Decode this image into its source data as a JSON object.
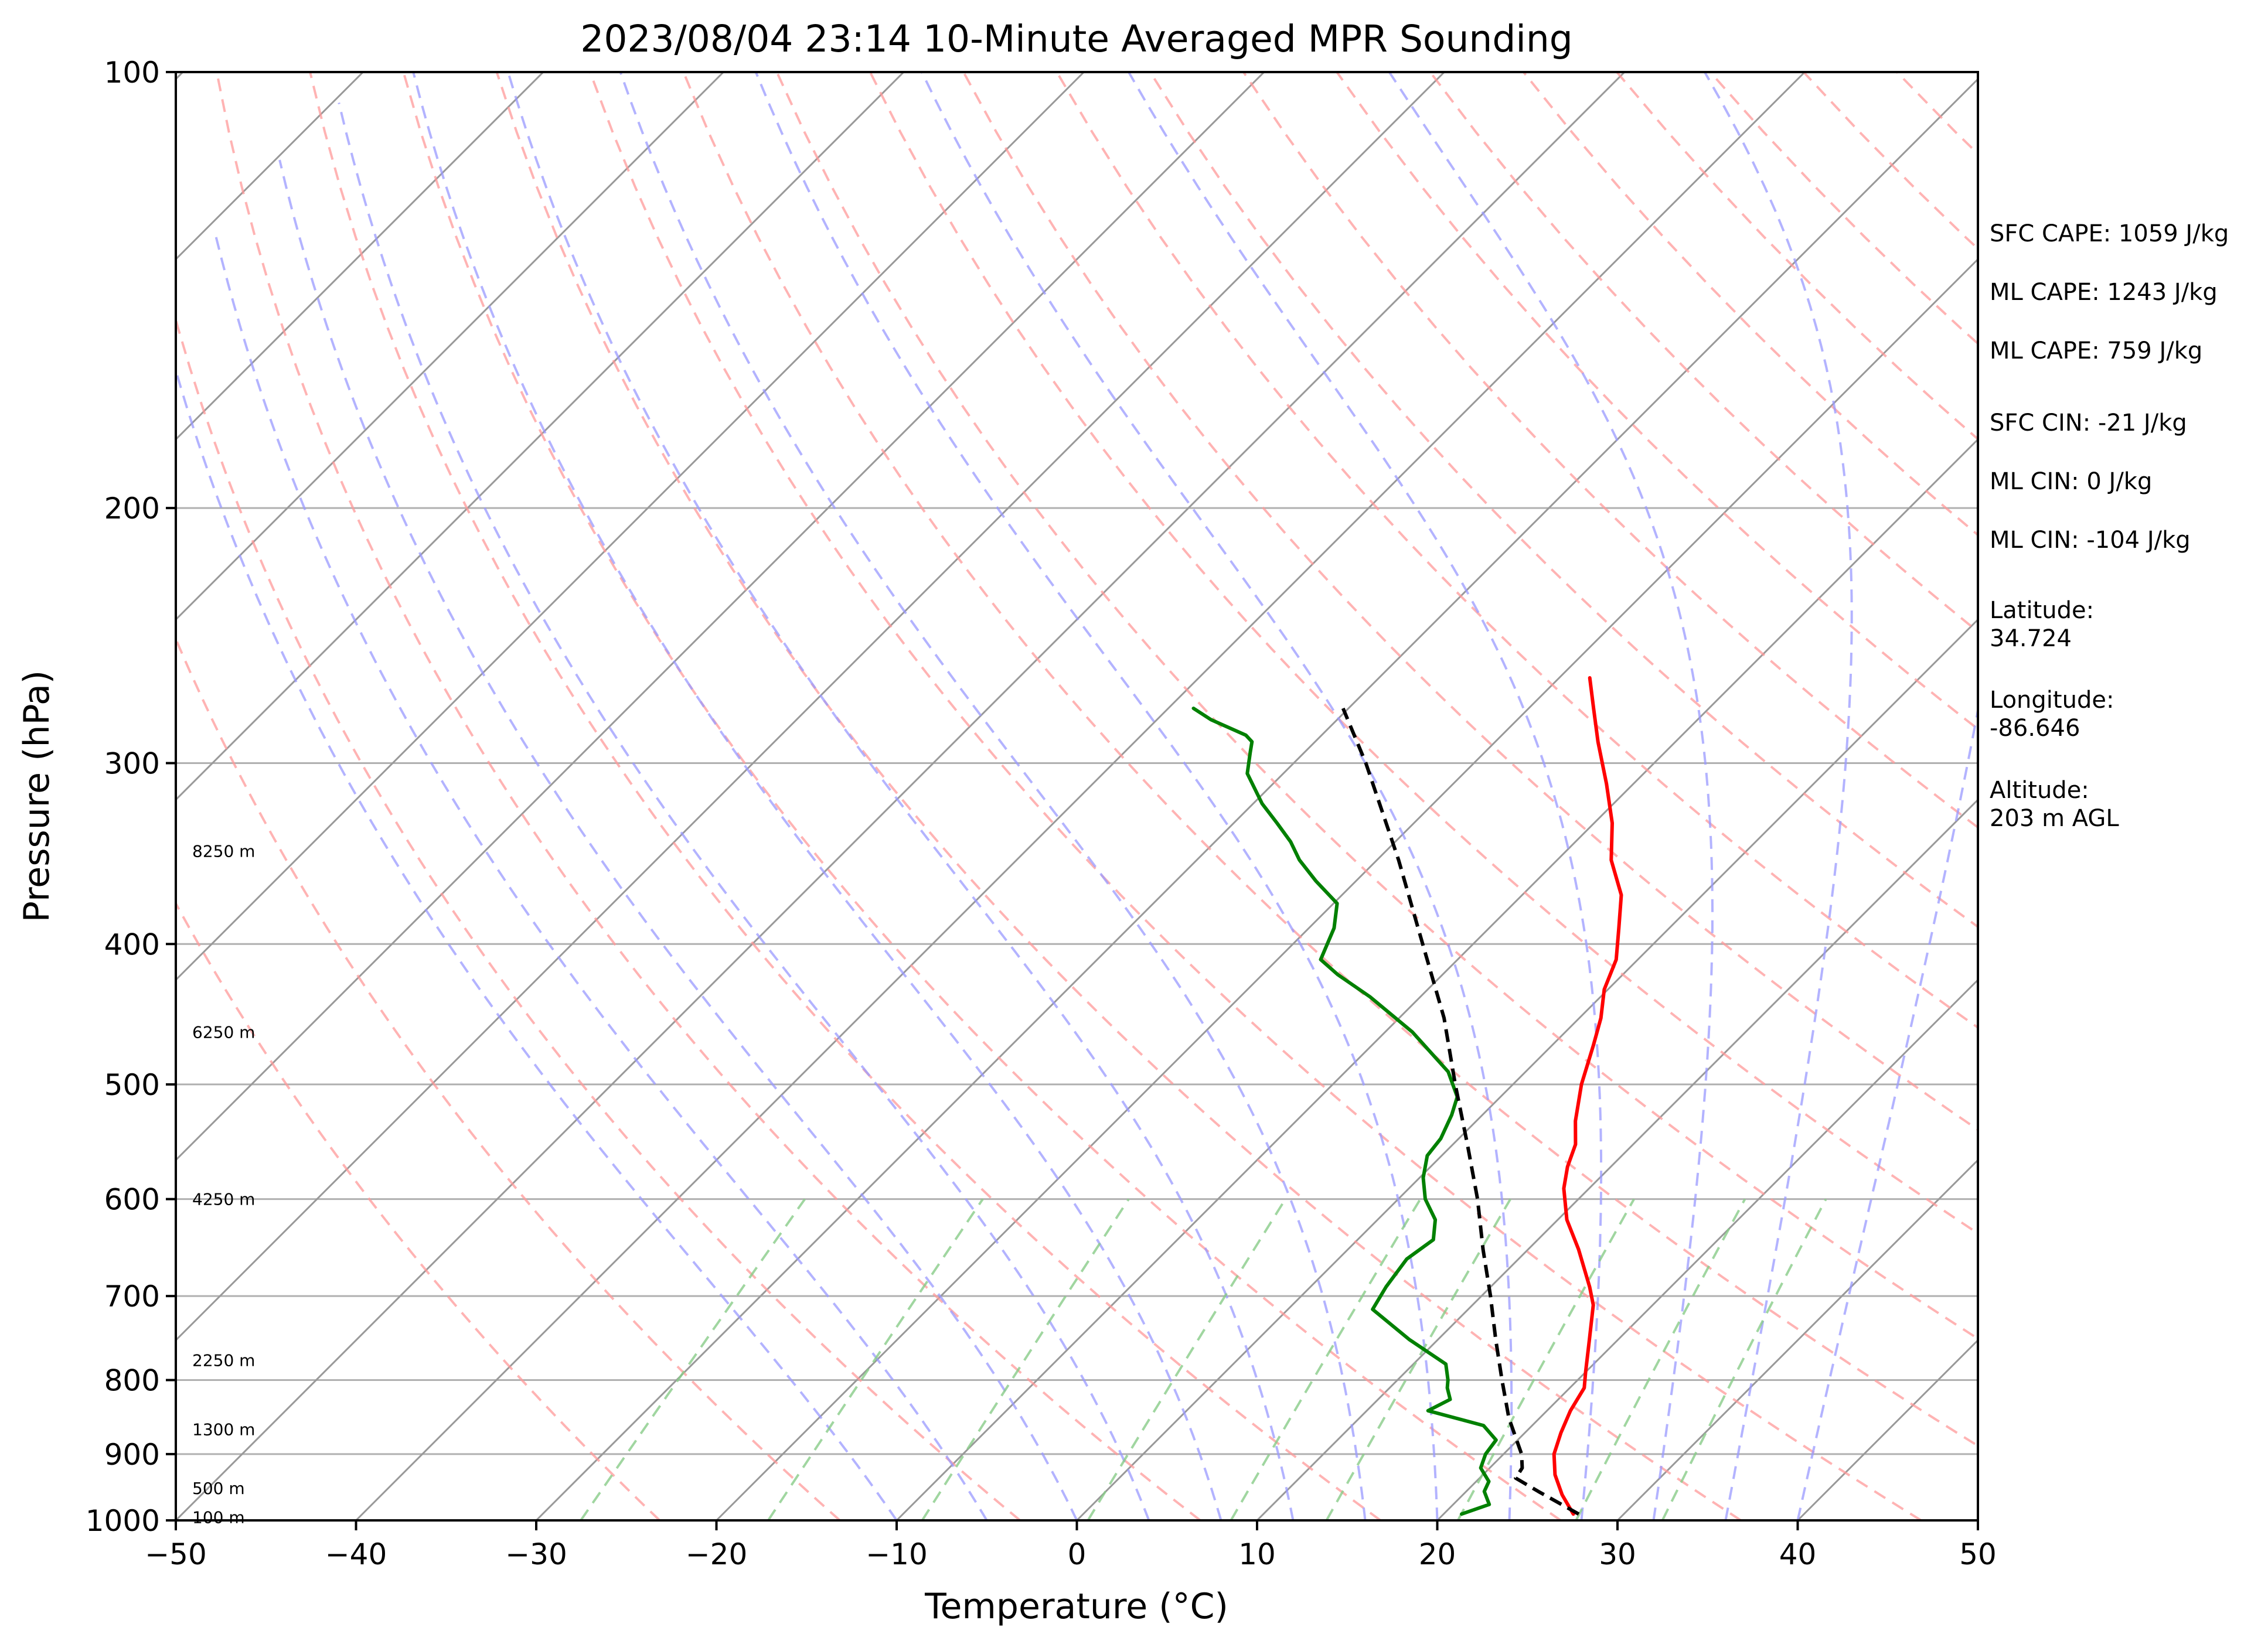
{
  "chart_data": {
    "type": "line",
    "title": "2023/08/04 23:14 10-Minute Averaged MPR Sounding",
    "xlabel": "Temperature (°C)",
    "ylabel": "Pressure (hPa)",
    "xlim": [
      -50,
      50
    ],
    "ylim": [
      1000,
      100
    ],
    "y_scale": "log",
    "skew_t": true,
    "grid": true,
    "x_ticks": [
      "−50",
      "−40",
      "−30",
      "−20",
      "−10",
      "0",
      "10",
      "20",
      "30",
      "40",
      "50"
    ],
    "y_ticks": [
      "100",
      "200",
      "300",
      "400",
      "500",
      "600",
      "700",
      "800",
      "900",
      "1000"
    ],
    "height_labels": [
      {
        "pressure": 995,
        "text": "100 m"
      },
      {
        "pressure": 950,
        "text": "500 m"
      },
      {
        "pressure": 865,
        "text": "1300 m"
      },
      {
        "pressure": 775,
        "text": "2250 m"
      },
      {
        "pressure": 600,
        "text": "4250 m"
      },
      {
        "pressure": 460,
        "text": "6250 m"
      },
      {
        "pressure": 345,
        "text": "8250 m"
      }
    ],
    "series": [
      {
        "role": "temperature",
        "color": "#ff0000",
        "points": [
          [
            27.2,
            990
          ],
          [
            25.5,
            960
          ],
          [
            24.0,
            930
          ],
          [
            22.8,
            900
          ],
          [
            22.0,
            870
          ],
          [
            21.3,
            840
          ],
          [
            20.8,
            810
          ],
          [
            20.0,
            790
          ],
          [
            18.4,
            750
          ],
          [
            16.7,
            710
          ],
          [
            15.5,
            690
          ],
          [
            12.8,
            650
          ],
          [
            10.5,
            620
          ],
          [
            8.6,
            590
          ],
          [
            7.6,
            570
          ],
          [
            6.8,
            550
          ],
          [
            5.5,
            530
          ],
          [
            3.8,
            500
          ],
          [
            2.3,
            470
          ],
          [
            1.2,
            450
          ],
          [
            -0.2,
            430
          ],
          [
            -1.2,
            410
          ],
          [
            -2.8,
            390
          ],
          [
            -4.5,
            370
          ],
          [
            -7.0,
            350
          ],
          [
            -9.0,
            330
          ],
          [
            -11.5,
            310
          ],
          [
            -14.3,
            290
          ],
          [
            -16.4,
            275
          ],
          [
            -18.3,
            262
          ]
        ]
      },
      {
        "role": "dewpoint",
        "color": "#008000",
        "points": [
          [
            21.0,
            990
          ],
          [
            22.0,
            975
          ],
          [
            21.0,
            955
          ],
          [
            20.7,
            940
          ],
          [
            19.5,
            920
          ],
          [
            19.0,
            900
          ],
          [
            18.8,
            880
          ],
          [
            17.3,
            860
          ],
          [
            13.4,
            840
          ],
          [
            14.0,
            825
          ],
          [
            13.2,
            810
          ],
          [
            12.8,
            800
          ],
          [
            11.8,
            780
          ],
          [
            8.4,
            750
          ],
          [
            4.7,
            715
          ],
          [
            4.2,
            690
          ],
          [
            3.8,
            660
          ],
          [
            4.2,
            640
          ],
          [
            3.2,
            620
          ],
          [
            1.5,
            600
          ],
          [
            0.2,
            580
          ],
          [
            -0.8,
            560
          ],
          [
            -1.0,
            545
          ],
          [
            -1.7,
            525
          ],
          [
            -2.4,
            510
          ],
          [
            -4.3,
            490
          ],
          [
            -8.5,
            460
          ],
          [
            -12.8,
            435
          ],
          [
            -15.8,
            420
          ],
          [
            -17.6,
            410
          ],
          [
            -18.6,
            390
          ],
          [
            -19.8,
            375
          ],
          [
            -22.2,
            362
          ],
          [
            -24.3,
            350
          ],
          [
            -25.8,
            340
          ],
          [
            -27.6,
            330
          ],
          [
            -29.5,
            320
          ],
          [
            -32.0,
            305
          ],
          [
            -33.0,
            295
          ],
          [
            -33.5,
            290
          ],
          [
            -34.2,
            287
          ],
          [
            -37.0,
            280
          ],
          [
            -38.6,
            275
          ]
        ]
      },
      {
        "role": "parcel",
        "color": "#000000",
        "dashed": true,
        "points": [
          [
            27.5,
            990
          ],
          [
            24.0,
            955
          ],
          [
            22.0,
            935
          ],
          [
            21.8,
            920
          ],
          [
            21.0,
            900
          ],
          [
            18.3,
            850
          ],
          [
            15.8,
            800
          ],
          [
            13.2,
            750
          ],
          [
            10.5,
            700
          ],
          [
            7.5,
            650
          ],
          [
            4.4,
            600
          ],
          [
            0.8,
            550
          ],
          [
            -3.2,
            500
          ],
          [
            -7.5,
            450
          ],
          [
            -12.8,
            400
          ],
          [
            -18.8,
            350
          ],
          [
            -26.0,
            300
          ],
          [
            -30.3,
            275
          ]
        ]
      }
    ],
    "legend": [],
    "annotations": [
      {
        "text": "SFC CAPE: 1059 J/kg"
      },
      {
        "text": "ML CAPE: 1243 J/kg"
      },
      {
        "text": "ML CAPE: 759 J/kg"
      },
      {
        "text": "SFC CIN: -21 J/kg"
      },
      {
        "text": "ML CIN: 0 J/kg"
      },
      {
        "text": "ML CIN: -104 J/kg"
      },
      {
        "text": "Latitude:\n34.724"
      },
      {
        "text": "Longitude:\n-86.646"
      },
      {
        "text": "Altitude:\n203 m AGL"
      }
    ],
    "colors": {
      "grid": "#b0b0b0",
      "isotherm": "#999999",
      "dry_adiabat": "#ff9999",
      "moist_adiabat": "#9999ff",
      "mixing_ratio": "#88cc88"
    }
  }
}
